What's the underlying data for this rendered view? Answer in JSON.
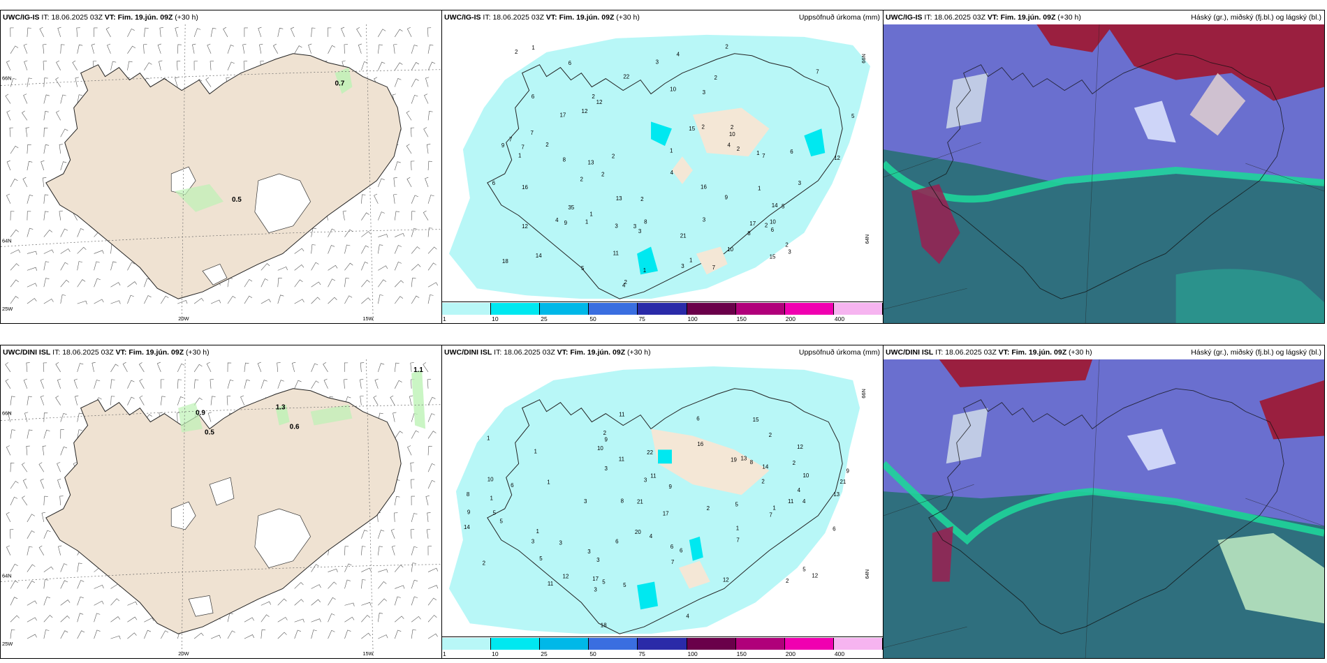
{
  "colorbar": {
    "colors": [
      "#b8f7f7",
      "#00e8f0",
      "#00b8e8",
      "#3a6ee0",
      "#2a2aa8",
      "#6a004a",
      "#b0007a",
      "#f000b0",
      "#f6b4f0"
    ],
    "ticks": [
      "1",
      "10",
      "25",
      "50",
      "75",
      "100",
      "150",
      "200",
      "400"
    ]
  },
  "rows": [
    {
      "wind": {
        "model": "UWC/IG-IS",
        "it_label": "IT:",
        "it": "18.06.2025 03Z",
        "vt_label": "VT:",
        "vt": "Fim. 19.jún. 09Z",
        "lead": "(+30 h)",
        "values": [
          {
            "text": "0.7",
            "x": "8%",
            "y": "0"
          },
          {
            "text": "0.5",
            "x": "0",
            "y": "0"
          }
        ],
        "lat_labels": [
          "66N",
          "64N",
          "25W"
        ],
        "lon_labels": [
          "20W",
          "15W"
        ]
      },
      "precip": {
        "model": "UWC/IG-IS",
        "it_label": "IT:",
        "it": "18.06.2025 03Z",
        "vt_label": "VT:",
        "vt": "Fim. 19.jún. 09Z",
        "lead": "(+30 h)",
        "title": "Uppsöfnuð úrkoma (mm)",
        "lat_labels": [
          "66N",
          "64N"
        ]
      },
      "cloud": {
        "model": "UWC/IG-IS",
        "it_label": "IT:",
        "it": "18.06.2025 03Z",
        "vt_label": "VT:",
        "vt": "Fim. 19.jún. 09Z",
        "lead": "(+30 h)",
        "title": "Háský (gr.), miðský (fj.bl.) og lágský (bl.)"
      }
    },
    {
      "wind": {
        "model": "UWC/DINI ISL",
        "it_label": "IT:",
        "it": "18.06.2025 03Z",
        "vt_label": "VT:",
        "vt": "Fim. 19.jún. 09Z",
        "lead": "(+30 h)",
        "values": [
          {
            "text": "1.1"
          },
          {
            "text": "0.9"
          },
          {
            "text": "1.3"
          },
          {
            "text": "0.6"
          },
          {
            "text": "0.5"
          }
        ],
        "lat_labels": [
          "66N",
          "64N",
          "25W"
        ],
        "lon_labels": [
          "20W",
          "15W"
        ]
      },
      "precip": {
        "model": "UWC/DINI ISL",
        "it_label": "IT:",
        "it": "18.06.2025 03Z",
        "vt_label": "VT:",
        "vt": "Fim. 19.jún. 09Z",
        "lead": "(+30 h)",
        "title": "Uppsöfnuð úrkoma (mm)",
        "lat_labels": [
          "66N",
          "64N"
        ]
      },
      "cloud": {
        "model": "UWC/DINI ISL",
        "it_label": "IT:",
        "it": "18.06.2025 03Z",
        "vt_label": "VT:",
        "vt": "Fim. 19.jún. 09Z",
        "lead": "(+30 h)",
        "title": "Háský (gr.), miðský (fj.bl.) og lágský (bl.)"
      }
    }
  ],
  "precip_numbers": {
    "row0": [
      "2",
      "2",
      "1",
      "5",
      "3",
      "2",
      "1",
      "1",
      "6",
      "4",
      "13",
      "10",
      "4",
      "7",
      "11",
      "7",
      "9",
      "3",
      "4",
      "3",
      "1",
      "3",
      "2",
      "7",
      "1",
      "2",
      "3",
      "12",
      "8",
      "17",
      "16",
      "16",
      "3",
      "2",
      "7",
      "12",
      "14",
      "2",
      "1",
      "15",
      "9",
      "4",
      "2",
      "2",
      "3",
      "2",
      "2",
      "5",
      "3",
      "7",
      "9",
      "6",
      "15",
      "12",
      "13",
      "8",
      "10",
      "12",
      "14",
      "10",
      "6",
      "22",
      "5",
      "4",
      "1",
      "6",
      "2",
      "1",
      "7",
      "1",
      "3",
      "21",
      "2",
      "8",
      "6",
      "17",
      "5",
      "10",
      "18",
      "3",
      "2",
      "2"
    ],
    "row1": [
      "1",
      "2",
      "6",
      "1",
      "1",
      "5",
      "12",
      "13",
      "5",
      "5",
      "3",
      "9",
      "2",
      "8",
      "8",
      "6",
      "4",
      "10",
      "9",
      "11",
      "5",
      "5",
      "3",
      "6",
      "2",
      "7",
      "11",
      "12",
      "4",
      "12",
      "4",
      "3",
      "6",
      "9",
      "20",
      "2",
      "2",
      "1",
      "14",
      "10",
      "13",
      "3",
      "11",
      "17",
      "19",
      "17",
      "15",
      "14",
      "8",
      "6",
      "2",
      "7",
      "5",
      "7",
      "12",
      "16",
      "10",
      "11",
      "6",
      "1",
      "21",
      "3",
      "22",
      "11",
      "9",
      "3",
      "3",
      "4",
      "1",
      "18",
      "21",
      "2",
      "1",
      "3",
      "5"
    ]
  }
}
